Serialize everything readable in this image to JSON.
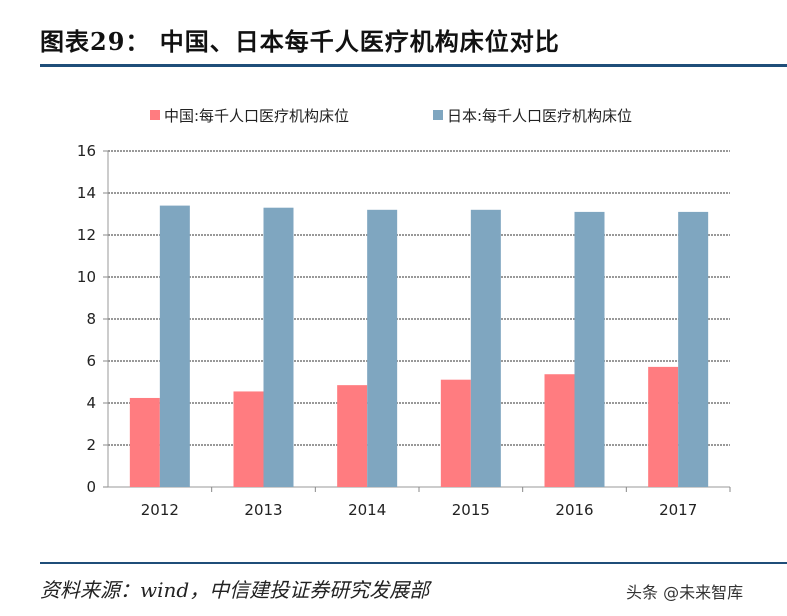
{
  "header": {
    "title": "图表29：  中国、日本每千人医疗机构床位对比"
  },
  "footer": {
    "source": "资料来源：wind，中信建投证券研究发展部",
    "watermark": "头条 @未来智库"
  },
  "chart_data": {
    "type": "bar",
    "title": "",
    "xlabel": "",
    "ylabel": "",
    "categories": [
      "2012",
      "2013",
      "2014",
      "2015",
      "2016",
      "2017"
    ],
    "series": [
      {
        "name": "中国:每千人口医疗机构床位",
        "color": "#ff7c80",
        "values": [
          4.24,
          4.55,
          4.85,
          5.11,
          5.37,
          5.72
        ]
      },
      {
        "name": "日本:每千人口医疗机构床位",
        "color": "#7fa6c0",
        "values": [
          13.4,
          13.3,
          13.2,
          13.2,
          13.1,
          13.1
        ]
      }
    ],
    "ylim": [
      0,
      16
    ],
    "yticks": [
      "0",
      "2",
      "4",
      "6",
      "8",
      "10",
      "12",
      "14",
      "16"
    ],
    "grid": true,
    "legend": "top"
  }
}
